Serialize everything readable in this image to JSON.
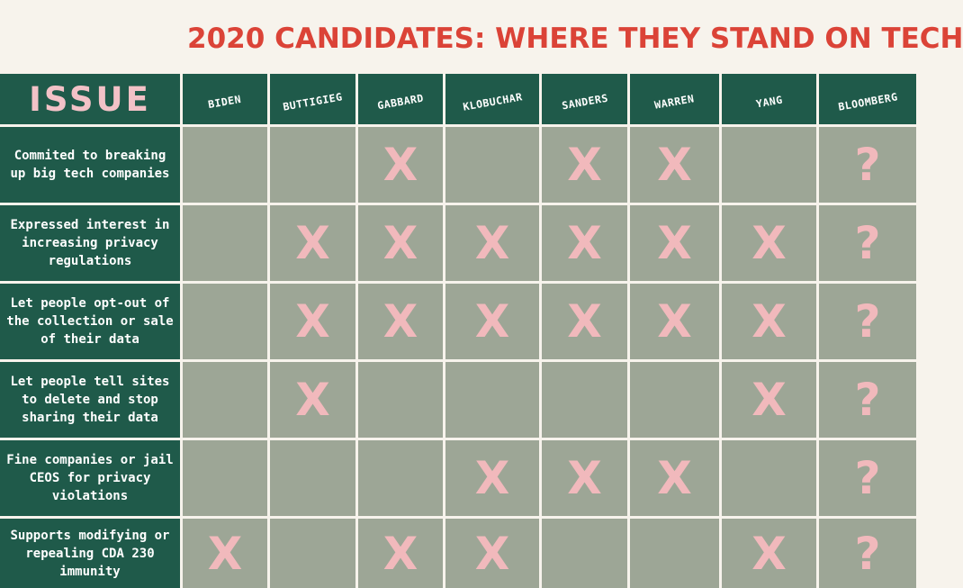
{
  "title": "2020 CANDIDATES: WHERE THEY STAND ON TECH",
  "issue_header": "ISSUE",
  "candidates": [
    "BIDEN",
    "BUTTIGIEG",
    "GABBARD",
    "KLOBUCHAR",
    "SANDERS",
    "WARREN",
    "YANG",
    "BLOOMBERG"
  ],
  "colors": {
    "title": "#db4337",
    "header_bg": "#1f5a4a",
    "cell_bg": "#9da696",
    "mark": "#f1b9bc",
    "issue_header_text": "#f2c2c7",
    "page_bg": "#f7f3ec"
  },
  "rows": [
    {
      "issue": "Commited to breaking up big tech companies",
      "cells": [
        "",
        "",
        "X",
        "",
        "X",
        "X",
        "",
        "?"
      ]
    },
    {
      "issue": "Expressed interest in increasing privacy regulations",
      "cells": [
        "",
        "X",
        "X",
        "X",
        "X",
        "X",
        "X",
        "?"
      ]
    },
    {
      "issue": "Let people opt-out of the collection or sale of their data",
      "cells": [
        "",
        "X",
        "X",
        "X",
        "X",
        "X",
        "X",
        "?"
      ]
    },
    {
      "issue": "Let people tell sites to delete and stop sharing their data",
      "cells": [
        "",
        "X",
        "",
        "",
        "",
        "",
        "X",
        "?"
      ]
    },
    {
      "issue": "Fine companies or jail CEOS for privacy violations",
      "cells": [
        "",
        "",
        "",
        "X",
        "X",
        "X",
        "",
        "?"
      ]
    },
    {
      "issue": "Supports modifying or repealing CDA 230 immunity",
      "cells": [
        "X",
        "",
        "X",
        "X",
        "",
        "",
        "X",
        "?"
      ]
    }
  ]
}
